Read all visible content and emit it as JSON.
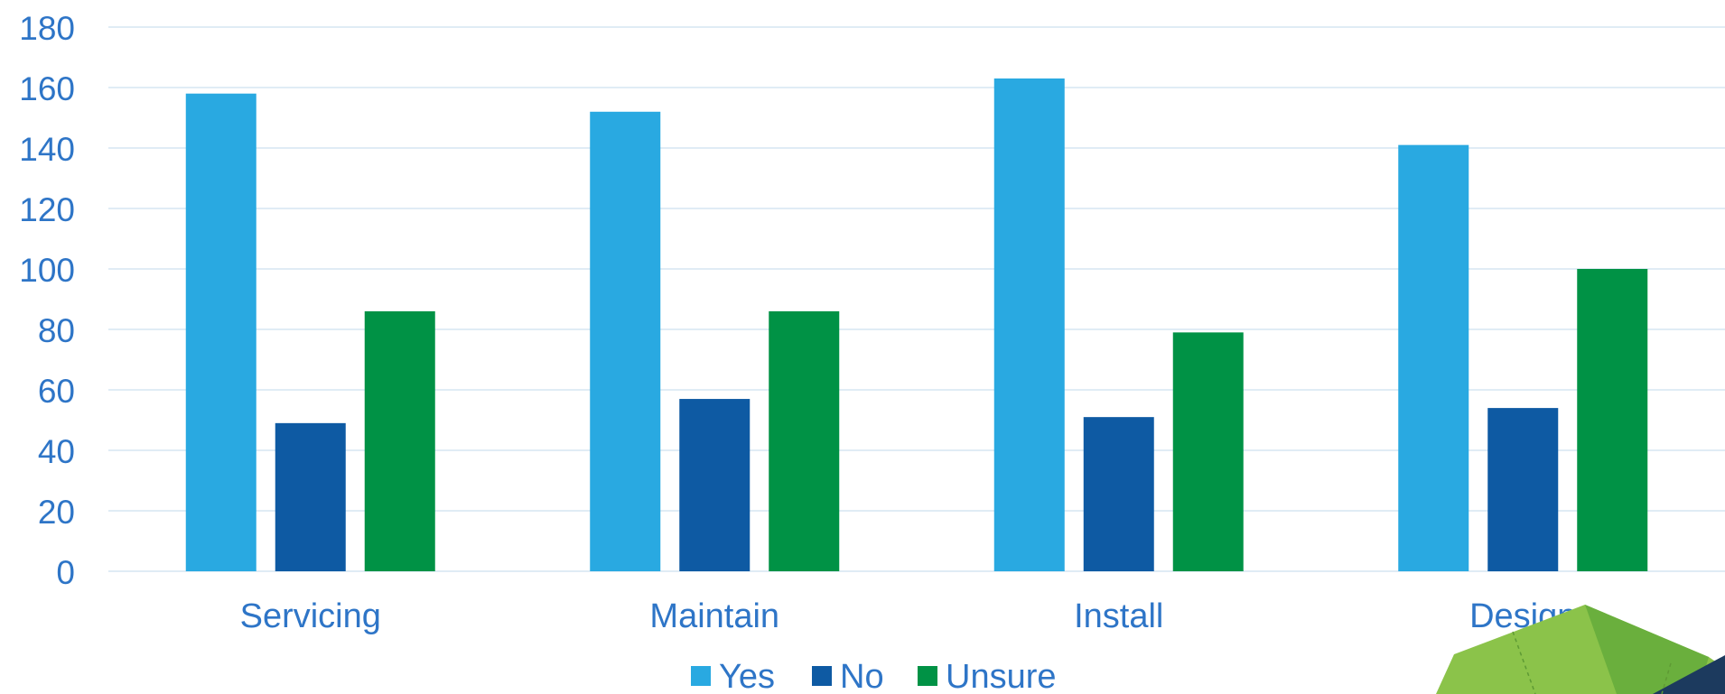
{
  "chart_data": {
    "type": "bar",
    "categories": [
      "Servicing",
      "Maintain",
      "Install",
      "Design"
    ],
    "series": [
      {
        "name": "Yes",
        "color": "#29A9E1",
        "values": [
          158,
          152,
          163,
          141
        ]
      },
      {
        "name": "No",
        "color": "#0E5AA3",
        "values": [
          49,
          57,
          51,
          54
        ]
      },
      {
        "name": "Unsure",
        "color": "#009245",
        "values": [
          86,
          86,
          79,
          100
        ]
      }
    ],
    "ylim": [
      0,
      180
    ],
    "yticks": [
      0,
      20,
      40,
      60,
      80,
      100,
      120,
      140,
      160,
      180
    ],
    "grid": true,
    "legend_position": "bottom-center",
    "text_color": "#2E75C7",
    "grid_color": "#D6E6F2"
  },
  "decoration": {
    "icon": "corner-logo-icon",
    "colors": [
      "#8BC34A",
      "#6AAF3D",
      "#1C3A5E"
    ]
  }
}
